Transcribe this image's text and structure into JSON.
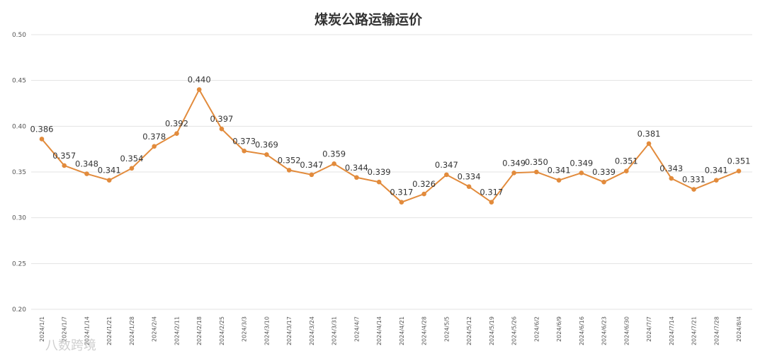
{
  "chart_data": {
    "type": "line",
    "title": "煤炭公路运输运价",
    "xlabel": "",
    "ylabel": "",
    "ylim": [
      0.2,
      0.5
    ],
    "yticks": [
      "0.20",
      "0.25",
      "0.30",
      "0.35",
      "0.40",
      "0.45",
      "0.50"
    ],
    "grid": true,
    "legend": "none",
    "categories": [
      "2024/1/1",
      "2024/1/7",
      "2024/1/14",
      "2024/1/21",
      "2024/1/28",
      "2024/2/4",
      "2024/2/11",
      "2024/2/18",
      "2024/2/25",
      "2024/3/3",
      "2024/3/10",
      "2024/3/17",
      "2024/3/24",
      "2024/3/31",
      "2024/4/7",
      "2024/4/14",
      "2024/4/21",
      "2024/4/28",
      "2024/5/5",
      "2024/5/12",
      "2024/5/19",
      "2024/5/26",
      "2024/6/2",
      "2024/6/9",
      "2024/6/16",
      "2024/6/23",
      "2024/6/30",
      "2024/7/7",
      "2024/7/14",
      "2024/7/21",
      "2024/7/28",
      "2024/8/4"
    ],
    "series": [
      {
        "color": "#e28b3c",
        "values": [
          0.386,
          0.357,
          0.348,
          0.341,
          0.354,
          0.378,
          0.392,
          0.44,
          0.397,
          0.373,
          0.369,
          0.352,
          0.347,
          0.359,
          0.344,
          0.339,
          0.317,
          0.326,
          0.347,
          0.334,
          0.317,
          0.349,
          0.35,
          0.341,
          0.349,
          0.339,
          0.351,
          0.381,
          0.343,
          0.331,
          0.341,
          0.351
        ]
      }
    ]
  },
  "watermark": "八数跨境"
}
